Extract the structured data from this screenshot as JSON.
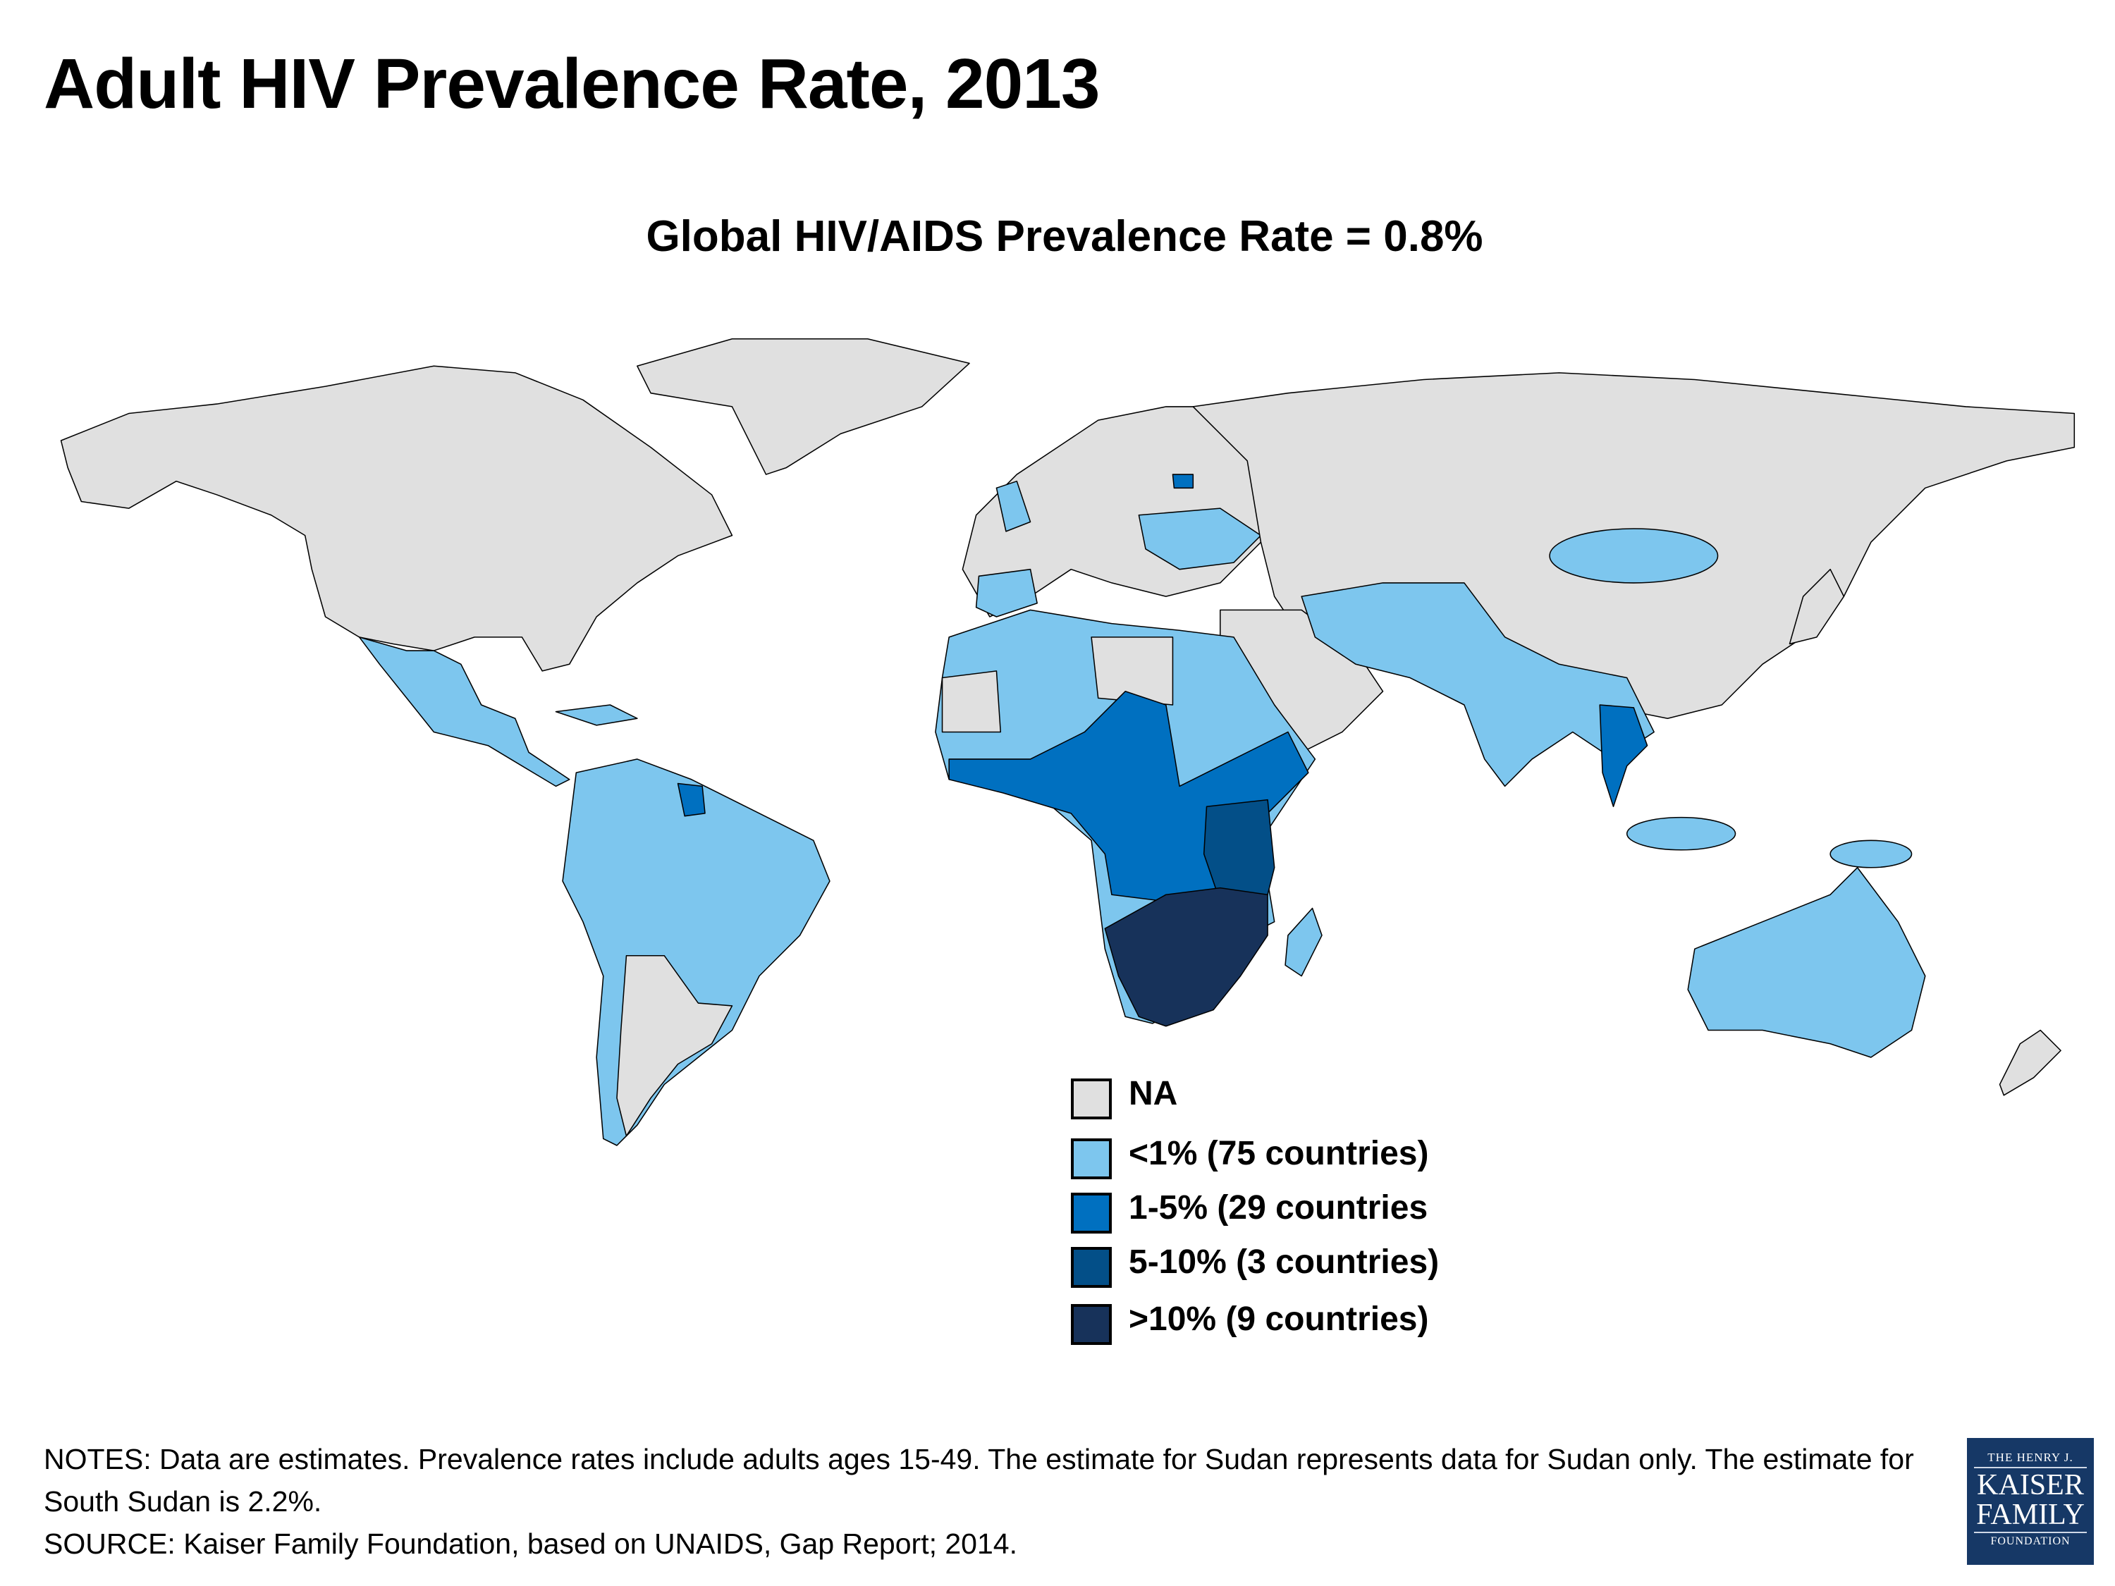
{
  "title": "Adult HIV Prevalence Rate, 2013",
  "subtitle": "Global HIV/AIDS Prevalence Rate = 0.8%",
  "legend": [
    {
      "label": "NA",
      "color": "#e0e0e0"
    },
    {
      "label": "<1% (75 countries)",
      "color": "#7dc6ee"
    },
    {
      "label": "1-5% (29 countries",
      "color": "#0070c0"
    },
    {
      "label": "5-10% (3 countries)",
      "color": "#034f88"
    },
    {
      "label": ">10% (9 countries)",
      "color": "#17325a"
    }
  ],
  "notes": {
    "line1": "NOTES: Data are estimates. Prevalence rates include adults ages 15-49. The estimate for Sudan represents data for Sudan only. The estimate for South Sudan is 2.2%.",
    "line2": "SOURCE: Kaiser Family Foundation, based on UNAIDS, Gap Report; 2014."
  },
  "logo": {
    "line1": "THE HENRY J.",
    "line2": "KAISER",
    "line3": "FAMILY",
    "line4": "FOUNDATION",
    "color": "#163866"
  }
}
